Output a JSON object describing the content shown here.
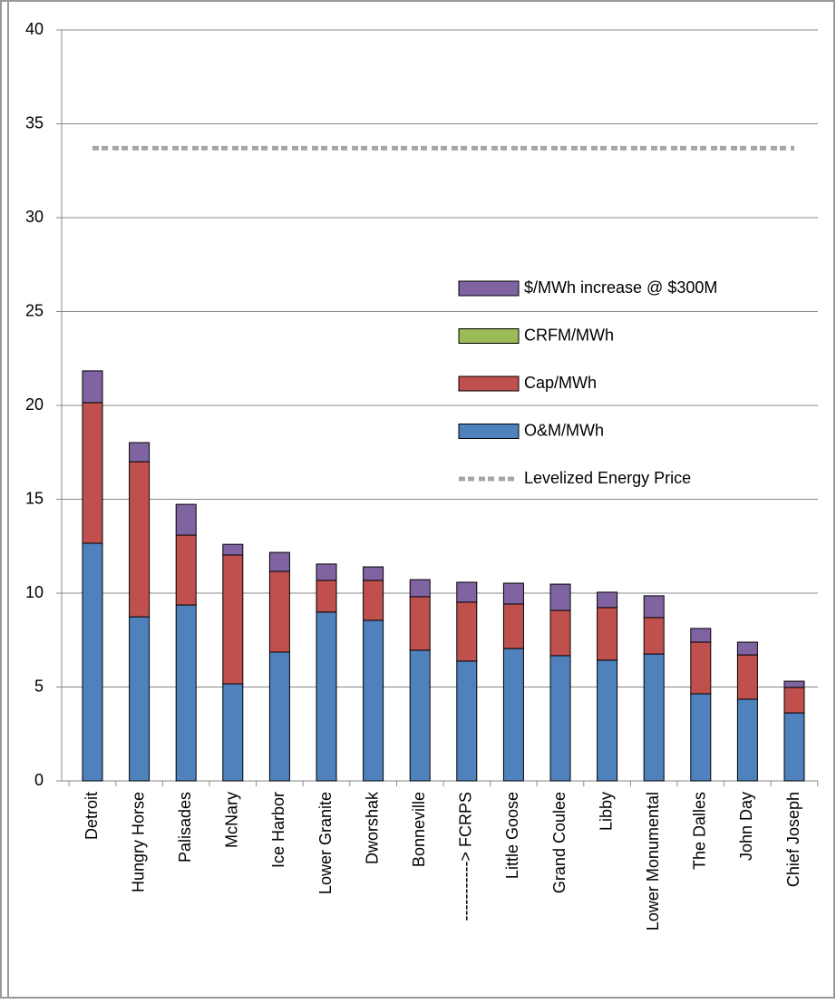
{
  "chart_data": {
    "type": "bar",
    "stacked": true,
    "categories": [
      "Detroit",
      "Hungry Horse",
      "Palisades",
      "McNary",
      "Ice Harbor",
      "Lower Granite",
      "Dworshak",
      "Bonneville",
      "-----------> FCRPS",
      "Little Goose",
      "Grand Coulee",
      "Libby",
      "Lower Monumental",
      "The Dalles",
      "John Day",
      "Chief Joseph"
    ],
    "series": [
      {
        "name": "O&M/MWh",
        "color": "#4f81bd",
        "values": [
          12.66,
          8.74,
          9.37,
          5.17,
          6.86,
          8.99,
          8.55,
          6.96,
          6.38,
          7.05,
          6.67,
          6.43,
          6.76,
          4.64,
          4.35,
          3.62
        ]
      },
      {
        "name": "Cap/MWh",
        "color": "#c0504d",
        "values": [
          7.49,
          8.26,
          3.72,
          6.86,
          4.3,
          1.69,
          2.13,
          2.85,
          3.14,
          2.37,
          2.41,
          2.8,
          1.94,
          2.75,
          2.36,
          1.36
        ]
      },
      {
        "name": "CRFM/MWh",
        "color": "#9bbb59",
        "values": [
          0,
          0,
          0,
          0,
          0,
          0,
          0,
          0,
          0,
          0,
          0,
          0,
          0,
          0,
          0,
          0
        ]
      },
      {
        "name": "$/MWh increase @ $300M",
        "color": "#8064a2",
        "values": [
          1.69,
          1.02,
          1.64,
          0.57,
          1.01,
          0.87,
          0.72,
          0.91,
          1.06,
          1.11,
          1.4,
          0.82,
          1.16,
          0.73,
          0.68,
          0.33
        ]
      },
      {
        "name": "Levelized Energy Price",
        "type": "line",
        "color": "#a6a6a6",
        "values": [
          33.7,
          33.7,
          33.7,
          33.7,
          33.7,
          33.7,
          33.7,
          33.7,
          33.7,
          33.7,
          33.7,
          33.7,
          33.7,
          33.7,
          33.7,
          33.7
        ]
      }
    ],
    "ylim": [
      0,
      40
    ],
    "yticks": [
      0,
      5,
      10,
      15,
      20,
      25,
      30,
      35,
      40
    ],
    "grid": true,
    "legend": "right"
  }
}
